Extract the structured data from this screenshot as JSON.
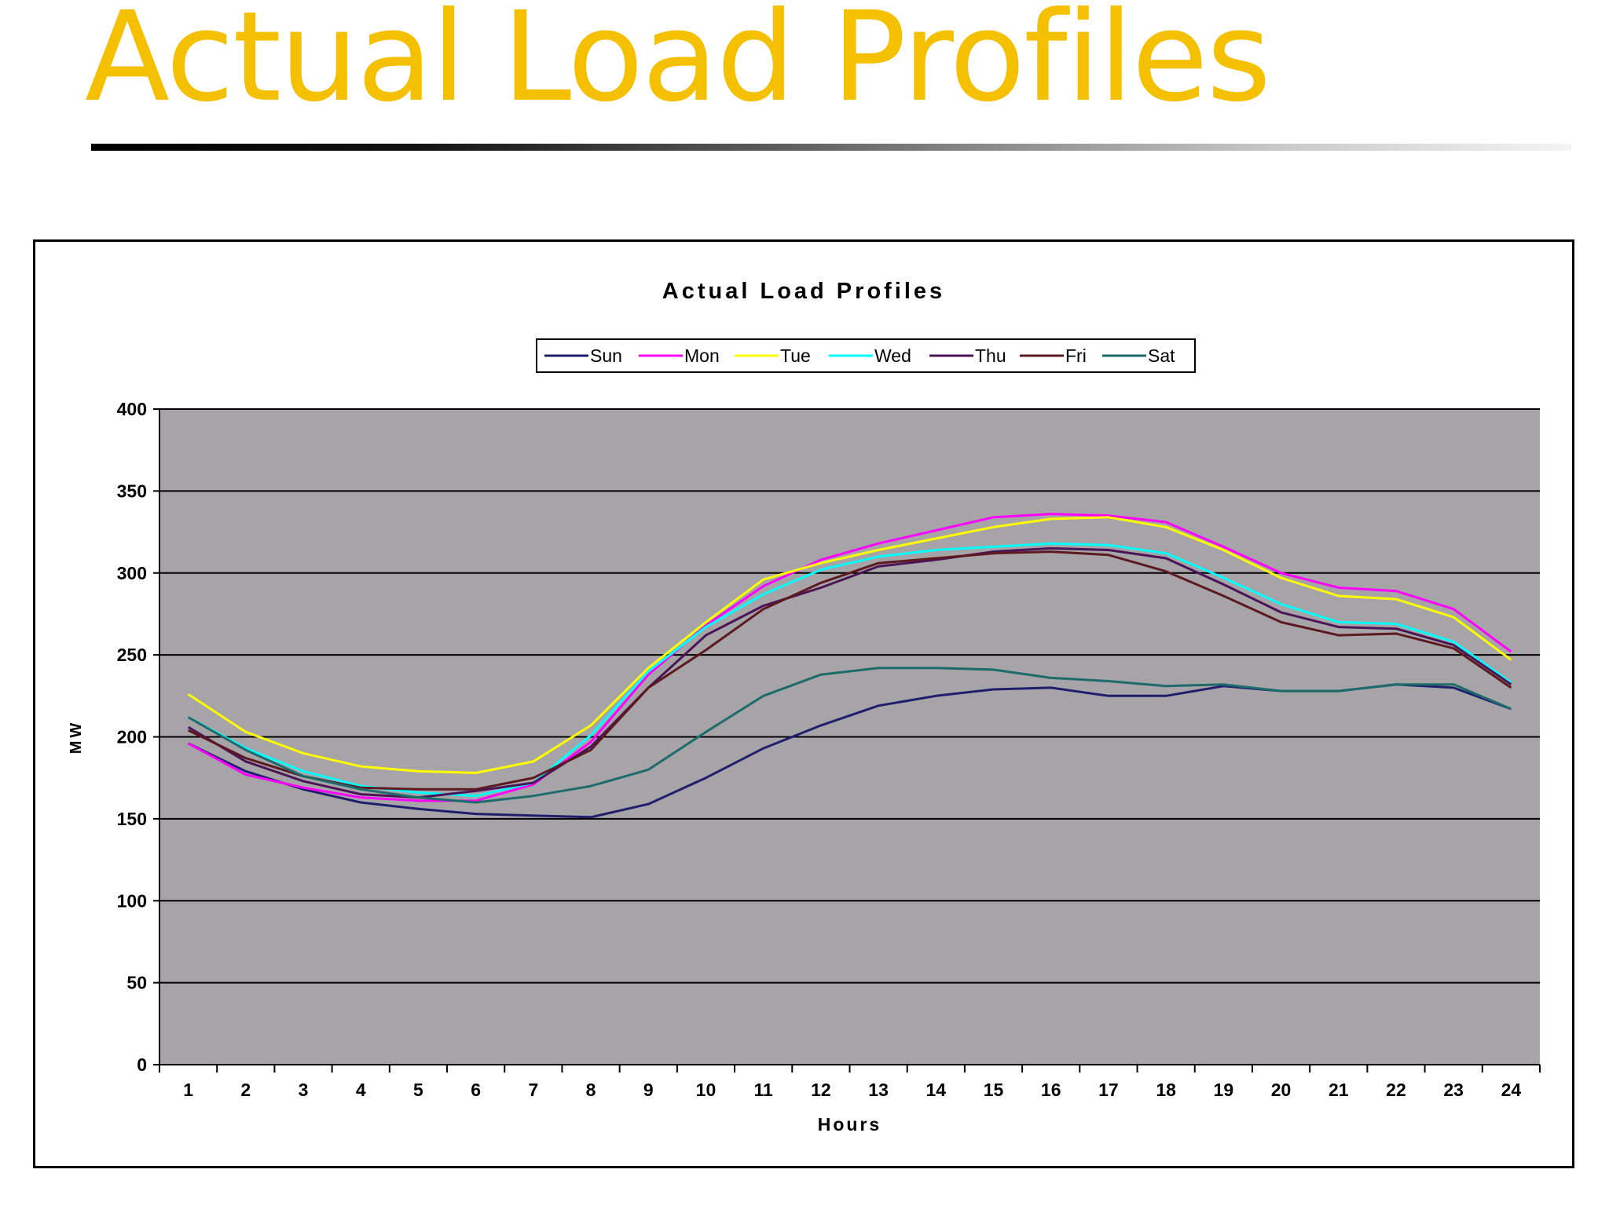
{
  "slide": {
    "title": "Actual Load Profiles"
  },
  "colors": {
    "title": "#f5c000",
    "plot_background": "#a6a4a7",
    "gridline": "#000000"
  },
  "chart_data": {
    "type": "line",
    "title": "Actual Load Profiles",
    "xlabel": "Hours",
    "ylabel": "MW",
    "ylim": [
      0,
      400
    ],
    "yticks": [
      0,
      50,
      100,
      150,
      200,
      250,
      300,
      350,
      400
    ],
    "grid": true,
    "legend_position": "top",
    "x": [
      1,
      2,
      3,
      4,
      5,
      6,
      7,
      8,
      9,
      10,
      11,
      12,
      13,
      14,
      15,
      16,
      17,
      18,
      19,
      20,
      21,
      22,
      23,
      24
    ],
    "series": [
      {
        "name": "Sun",
        "color": "#1f1f6e",
        "values": [
          196,
          179,
          168,
          160,
          156,
          153,
          152,
          151,
          159,
          175,
          193,
          207,
          219,
          225,
          229,
          230,
          225,
          225,
          231,
          228,
          228,
          232,
          230,
          217
        ]
      },
      {
        "name": "Mon",
        "color": "#ff00ff",
        "values": [
          196,
          177,
          169,
          163,
          161,
          161,
          171,
          197,
          238,
          268,
          292,
          308,
          318,
          326,
          334,
          336,
          335,
          331,
          316,
          300,
          291,
          289,
          278,
          252
        ]
      },
      {
        "name": "Tue",
        "color": "#ffff00",
        "values": [
          226,
          203,
          190,
          182,
          179,
          178,
          185,
          207,
          242,
          270,
          296,
          306,
          314,
          321,
          328,
          333,
          334,
          328,
          314,
          297,
          286,
          284,
          273,
          247
        ]
      },
      {
        "name": "Wed",
        "color": "#00ffff",
        "values": [
          212,
          193,
          179,
          170,
          166,
          164,
          172,
          201,
          240,
          267,
          287,
          302,
          310,
          314,
          316,
          318,
          317,
          312,
          297,
          281,
          270,
          269,
          258,
          233
        ]
      },
      {
        "name": "Thu",
        "color": "#4b1456",
        "values": [
          206,
          185,
          173,
          165,
          163,
          167,
          172,
          194,
          230,
          262,
          280,
          291,
          304,
          308,
          313,
          315,
          314,
          309,
          293,
          276,
          267,
          266,
          256,
          232
        ]
      },
      {
        "name": "Fri",
        "color": "#5c1a20",
        "values": [
          204,
          187,
          176,
          169,
          168,
          168,
          175,
          192,
          230,
          253,
          278,
          294,
          306,
          309,
          312,
          313,
          311,
          301,
          286,
          270,
          262,
          263,
          254,
          230
        ]
      },
      {
        "name": "Sat",
        "color": "#1d6b6b",
        "values": [
          212,
          192,
          176,
          168,
          163,
          160,
          164,
          170,
          180,
          203,
          225,
          238,
          242,
          242,
          241,
          236,
          234,
          231,
          232,
          228,
          228,
          232,
          232,
          217
        ]
      }
    ]
  }
}
